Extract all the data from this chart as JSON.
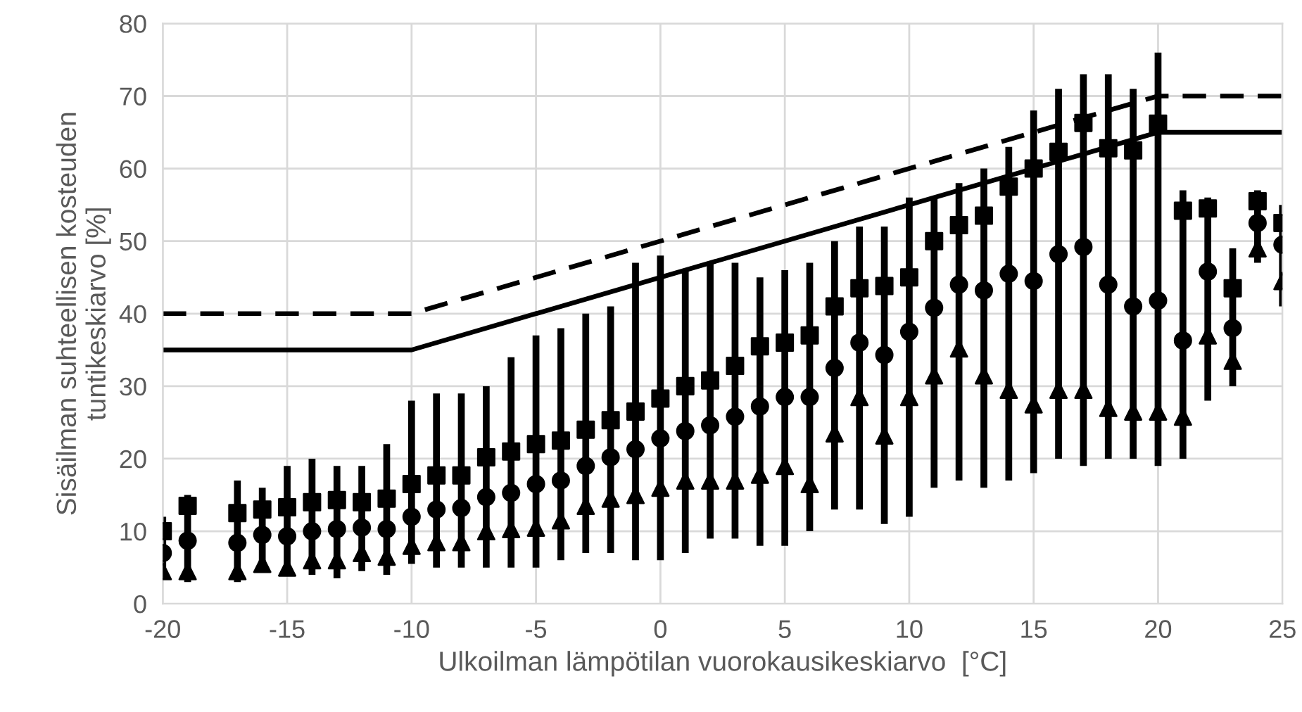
{
  "chart_data": {
    "type": "scatter",
    "xlabel": "Ulkoilman lämpötilan vuorokausikeskiarvo  [°C]",
    "ylabel": "Sisäilman suhteellisen kosteuden\ntuntikeskiarvo [%]",
    "x": [
      -20,
      -19,
      -17,
      -16,
      -15,
      -14,
      -13,
      -12,
      -11,
      -10,
      -9,
      -8,
      -7,
      -6,
      -5,
      -4,
      -3,
      -2,
      -1,
      0,
      1,
      2,
      3,
      4,
      5,
      6,
      7,
      8,
      9,
      10,
      11,
      12,
      13,
      14,
      15,
      16,
      17,
      18,
      19,
      20,
      21,
      22,
      23,
      24,
      25
    ],
    "xlim": [
      -20,
      25
    ],
    "xticks": [
      -20,
      -15,
      -10,
      -5,
      0,
      5,
      10,
      15,
      20,
      25
    ],
    "ylim": [
      0,
      80
    ],
    "yticks": [
      0,
      10,
      20,
      30,
      40,
      50,
      60,
      70,
      80
    ],
    "grid": true,
    "legend": false,
    "series": [
      {
        "marker": "circle",
        "color": "#000000",
        "values": [
          7,
          8.7,
          8.4,
          9.5,
          9.3,
          10,
          10.3,
          10.5,
          10.3,
          12,
          13,
          13.2,
          14.7,
          15.3,
          16.5,
          17,
          19,
          20.2,
          21.3,
          22.8,
          23.8,
          24.6,
          25.8,
          27.2,
          28.5,
          28.5,
          32.5,
          36,
          34.3,
          37.5,
          40.8,
          44,
          43.2,
          45.5,
          44.5,
          48.2,
          49.2,
          44,
          41,
          41.8,
          36.3,
          45.8,
          38,
          52.5,
          49.5
        ],
        "errors": [
          [
            4,
            12
          ],
          [
            3,
            15
          ],
          [
            3,
            17
          ],
          [
            4.5,
            16
          ],
          [
            4,
            19
          ],
          [
            4,
            20
          ],
          [
            3.5,
            19
          ],
          [
            4.5,
            19
          ],
          [
            4,
            22
          ],
          [
            5.5,
            28
          ],
          [
            5,
            29
          ],
          [
            5,
            29
          ],
          [
            5,
            30
          ],
          [
            5,
            34
          ],
          [
            5,
            37
          ],
          [
            6,
            38
          ],
          [
            7,
            40
          ],
          [
            7,
            41
          ],
          [
            6,
            47
          ],
          [
            6,
            48
          ],
          [
            7,
            46
          ],
          [
            9,
            47
          ],
          [
            9,
            47
          ],
          [
            8,
            45
          ],
          [
            8,
            46
          ],
          [
            10,
            47
          ],
          [
            13,
            50
          ],
          [
            13,
            52
          ],
          [
            11,
            52
          ],
          [
            12,
            56
          ],
          [
            16,
            56
          ],
          [
            17,
            58
          ],
          [
            16,
            60
          ],
          [
            17,
            63
          ],
          [
            18,
            68
          ],
          [
            20,
            71
          ],
          [
            19,
            73
          ],
          [
            20,
            73
          ],
          [
            20,
            71
          ],
          [
            19,
            76
          ],
          [
            20,
            57
          ],
          [
            28,
            56
          ],
          [
            30,
            49
          ],
          [
            47,
            57
          ],
          [
            41,
            55
          ]
        ]
      },
      {
        "marker": "square",
        "color": "#000000",
        "values": [
          10,
          13.5,
          12.5,
          13,
          13.3,
          14,
          14.3,
          14,
          14.5,
          16.5,
          17.7,
          17.7,
          20.2,
          21,
          22,
          22.5,
          24,
          25.3,
          26.5,
          28.3,
          30,
          30.8,
          32.8,
          35.5,
          36,
          37,
          41,
          43.5,
          43.8,
          45,
          50,
          52.2,
          53.5,
          57.5,
          60,
          62.3,
          66.3,
          62.8,
          62.5,
          66.2,
          54.2,
          54.5,
          43.5,
          55.5,
          52.5
        ]
      },
      {
        "marker": "triangle",
        "color": "#000000",
        "values": [
          4.5,
          4.5,
          4.5,
          5.5,
          5,
          6,
          6,
          7,
          6.5,
          8,
          8.5,
          8.5,
          10,
          10.3,
          10.5,
          11.5,
          13.5,
          14.5,
          15,
          16,
          17,
          17,
          17,
          17.8,
          19,
          16.5,
          23.5,
          28.5,
          23.2,
          28.5,
          31.5,
          35.2,
          31.5,
          29.5,
          27.5,
          29.5,
          29.5,
          27,
          26.5,
          26.5,
          25.8,
          37,
          33.5,
          49,
          44.5
        ]
      },
      {
        "type": "line",
        "line_style": "solid",
        "color": "#000000",
        "x": [
          -20,
          -10,
          20,
          25
        ],
        "values": [
          35,
          35,
          65,
          65
        ]
      },
      {
        "type": "line",
        "line_style": "dashed",
        "color": "#000000",
        "x": [
          -20,
          -10,
          20,
          25
        ],
        "values": [
          40,
          40,
          70,
          70
        ]
      }
    ]
  }
}
